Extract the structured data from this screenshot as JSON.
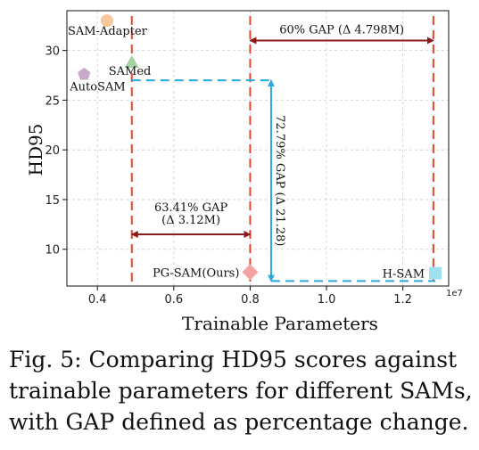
{
  "chart_data": {
    "type": "scatter",
    "xlabel": "Trainable Parameters",
    "ylabel": "HD95",
    "x_exponent_label": "1e7",
    "xlim": [
      0.32,
      1.32
    ],
    "ylim": [
      6.3,
      34.0
    ],
    "x_ticks": [
      0.4,
      0.6,
      0.8,
      1.0,
      1.2
    ],
    "y_ticks": [
      10,
      15,
      20,
      25,
      30
    ],
    "x_tick_labels": [
      "0.4",
      "0.6",
      "0.8",
      "1.0",
      "1.2"
    ],
    "y_tick_labels": [
      "10",
      "15",
      "20",
      "25",
      "30"
    ],
    "grid": true,
    "points": [
      {
        "name": "SAM-Adapter",
        "x": 0.425,
        "y": 33.0,
        "marker": "circle",
        "color": "#f7c69a"
      },
      {
        "name": "AutoSAM",
        "x": 0.365,
        "y": 27.6,
        "marker": "pentagon",
        "color": "#c9a9c9"
      },
      {
        "name": "SAMed",
        "x": 0.49,
        "y": 28.8,
        "marker": "triangle",
        "color": "#a3d3a3"
      },
      {
        "name": "PG-SAM(Ours)",
        "x": 0.8,
        "y": 7.7,
        "marker": "diamond",
        "color": "#f4a3a3"
      },
      {
        "name": "H-SAM",
        "x": 1.285,
        "y": 7.6,
        "marker": "square",
        "color": "#9fe0f0"
      }
    ],
    "annotations": [
      {
        "label": "60% GAP (Δ 4.798M)",
        "from_x": 0.8,
        "to_x": 1.28,
        "y": 31.0,
        "color": "#8b1a1a"
      },
      {
        "label_lines": [
          "63.41% GAP",
          "(Δ 3.12M)"
        ],
        "from_x": 0.49,
        "to_x": 0.8,
        "y": 11.5,
        "color": "#8b1a1a"
      },
      {
        "label": "72.79% GAP (Δ 21.28)",
        "x": 0.855,
        "from_y": 27.0,
        "to_y": 6.8,
        "color": "#29a9df"
      }
    ],
    "red_dashed_verticals": [
      0.49,
      0.8,
      1.28
    ],
    "blue_dashed_path": {
      "x0": 0.49,
      "x_mid": 0.855,
      "x1": 1.285,
      "y_top": 27.0,
      "y_bottom": 6.8
    },
    "colors": {
      "red_dash": "#e8432d",
      "dark_red": "#8b1a1a",
      "blue": "#29a9df"
    }
  },
  "caption": {
    "lines": [
      "Fig. 5: Comparing HD95 scores against",
      "trainable parameters for different SAMs,",
      "with GAP defined as percentage change."
    ]
  }
}
